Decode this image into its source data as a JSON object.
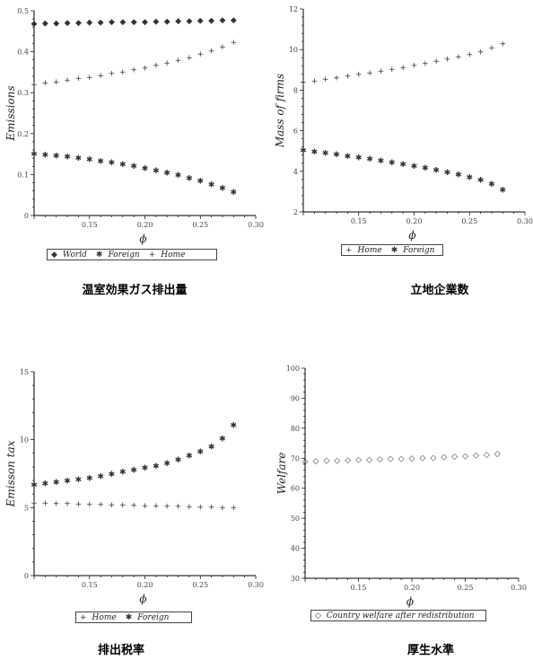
{
  "chart_data": [
    {
      "type": "scatter",
      "caption": "温室効果ガス排出量",
      "xlabel": "ϕ",
      "ylabel": "Emissions",
      "xlim": [
        0.1,
        0.3
      ],
      "ylim": [
        0,
        0.5
      ],
      "xticks": [
        "0.15",
        "0.20",
        "0.25",
        "0.30"
      ],
      "xtick_values": [
        0.15,
        0.2,
        0.25,
        0.3
      ],
      "yticks": [
        "0",
        "0.1",
        "0.2",
        "0.3",
        "0.4",
        "0.5"
      ],
      "ytick_values": [
        0,
        0.1,
        0.2,
        0.3,
        0.4,
        0.5
      ],
      "x": [
        0.1,
        0.11,
        0.12,
        0.13,
        0.14,
        0.15,
        0.16,
        0.17,
        0.18,
        0.19,
        0.2,
        0.21,
        0.22,
        0.23,
        0.24,
        0.25,
        0.26,
        0.27,
        0.28
      ],
      "series": [
        {
          "name": "World",
          "marker": "◆",
          "values": [
            0.467,
            0.468,
            0.468,
            0.469,
            0.469,
            0.47,
            0.47,
            0.471,
            0.471,
            0.472,
            0.472,
            0.473,
            0.473,
            0.474,
            0.474,
            0.475,
            0.475,
            0.476,
            0.476
          ]
        },
        {
          "name": "Foreign",
          "marker": "✱",
          "values": [
            0.148,
            0.146,
            0.144,
            0.141,
            0.138,
            0.135,
            0.131,
            0.127,
            0.123,
            0.118,
            0.113,
            0.108,
            0.102,
            0.096,
            0.089,
            0.082,
            0.074,
            0.065,
            0.055
          ]
        },
        {
          "name": "Home",
          "marker": "+",
          "values": [
            0.318,
            0.322,
            0.325,
            0.329,
            0.333,
            0.336,
            0.34,
            0.345,
            0.349,
            0.354,
            0.359,
            0.365,
            0.371,
            0.377,
            0.384,
            0.392,
            0.4,
            0.41,
            0.421
          ]
        }
      ]
    },
    {
      "type": "scatter",
      "caption": "立地企業数",
      "xlabel": "ϕ",
      "ylabel": "Mass of firms",
      "xlim": [
        0.1,
        0.3
      ],
      "ylim": [
        2,
        12
      ],
      "xticks": [
        "0.15",
        "0.20",
        "0.25",
        "0.30"
      ],
      "xtick_values": [
        0.15,
        0.2,
        0.25,
        0.3
      ],
      "yticks": [
        "2",
        "4",
        "6",
        "8",
        "10",
        "12"
      ],
      "ytick_values": [
        2,
        4,
        6,
        8,
        10,
        12
      ],
      "x": [
        0.1,
        0.11,
        0.12,
        0.13,
        0.14,
        0.15,
        0.16,
        0.17,
        0.18,
        0.19,
        0.2,
        0.21,
        0.22,
        0.23,
        0.24,
        0.25,
        0.26,
        0.27,
        0.28
      ],
      "series": [
        {
          "name": "Home",
          "marker": "+",
          "values": [
            8.35,
            8.42,
            8.5,
            8.58,
            8.66,
            8.74,
            8.82,
            8.91,
            9.0,
            9.09,
            9.18,
            9.28,
            9.38,
            9.49,
            9.6,
            9.72,
            9.85,
            10.05,
            10.25
          ]
        },
        {
          "name": "Foreign",
          "marker": "✱",
          "values": [
            4.98,
            4.92,
            4.85,
            4.78,
            4.71,
            4.64,
            4.56,
            4.48,
            4.4,
            4.31,
            4.22,
            4.12,
            4.02,
            3.91,
            3.79,
            3.66,
            3.52,
            3.33,
            3.05
          ]
        }
      ]
    },
    {
      "type": "scatter",
      "caption": "排出税率",
      "xlabel": "ϕ",
      "ylabel": "Emisson tax",
      "xlim": [
        0.1,
        0.3
      ],
      "ylim": [
        0,
        15
      ],
      "xticks": [
        "0.15",
        "0.20",
        "0.25",
        "0.30"
      ],
      "xtick_values": [
        0.15,
        0.2,
        0.25,
        0.3
      ],
      "yticks": [
        "0",
        "5",
        "10",
        "15"
      ],
      "ytick_values": [
        0,
        5,
        10,
        15
      ],
      "x": [
        0.1,
        0.11,
        0.12,
        0.13,
        0.14,
        0.15,
        0.16,
        0.17,
        0.18,
        0.19,
        0.2,
        0.21,
        0.22,
        0.23,
        0.24,
        0.25,
        0.26,
        0.27,
        0.28
      ],
      "series": [
        {
          "name": "Home",
          "marker": "+",
          "values": [
            5.3,
            5.28,
            5.26,
            5.24,
            5.22,
            5.2,
            5.18,
            5.16,
            5.14,
            5.12,
            5.1,
            5.08,
            5.06,
            5.04,
            5.02,
            5.0,
            4.98,
            4.96,
            4.94
          ]
        },
        {
          "name": "Foreign",
          "marker": "✱",
          "values": [
            6.6,
            6.7,
            6.8,
            6.9,
            7.0,
            7.12,
            7.25,
            7.4,
            7.55,
            7.7,
            7.85,
            8.0,
            8.2,
            8.45,
            8.75,
            9.05,
            9.4,
            10.0,
            11.0
          ]
        }
      ]
    },
    {
      "type": "scatter",
      "caption": "厚生水準",
      "xlabel": "ϕ",
      "ylabel": "Welfare",
      "xlim": [
        0.1,
        0.3
      ],
      "ylim": [
        30,
        100
      ],
      "xticks": [
        "0.15",
        "0.20",
        "0.25",
        "0.30"
      ],
      "xtick_values": [
        0.15,
        0.2,
        0.25,
        0.3
      ],
      "yticks": [
        "30",
        "40",
        "50",
        "60",
        "70",
        "80",
        "90",
        "100"
      ],
      "ytick_values": [
        30,
        40,
        50,
        60,
        70,
        80,
        90,
        100
      ],
      "x": [
        0.1,
        0.11,
        0.12,
        0.13,
        0.14,
        0.15,
        0.16,
        0.17,
        0.18,
        0.19,
        0.2,
        0.21,
        0.22,
        0.23,
        0.24,
        0.25,
        0.26,
        0.27,
        0.28
      ],
      "series": [
        {
          "name": "Country welfare after redistribution",
          "marker": "◇",
          "values": [
            68.8,
            68.9,
            69.0,
            69.1,
            69.2,
            69.3,
            69.4,
            69.5,
            69.6,
            69.7,
            69.8,
            69.9,
            70.0,
            70.2,
            70.4,
            70.6,
            70.8,
            71.0,
            71.3
          ]
        }
      ]
    }
  ]
}
